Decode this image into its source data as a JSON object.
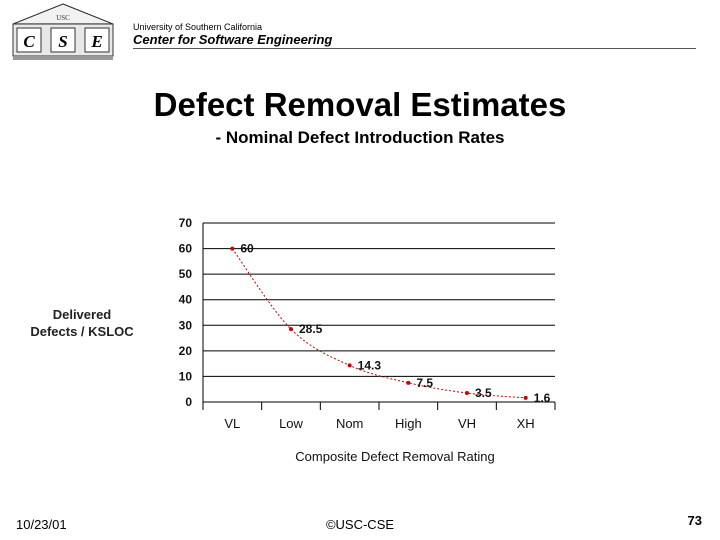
{
  "header": {
    "logo_text": "CSE",
    "logo_letters": [
      "C",
      "S",
      "E"
    ],
    "logo_top": "USC",
    "university": "University of Southern California",
    "department": "Center for Software  Engineering"
  },
  "slide": {
    "title": "Defect Removal Estimates",
    "subtitle": "- Nominal Defect Introduction Rates"
  },
  "chart_data": {
    "type": "line",
    "categories": [
      "VL",
      "Low",
      "Nom",
      "High",
      "VH",
      "XH"
    ],
    "series": [
      {
        "values": [
          60,
          28.5,
          14.3,
          7.5,
          3.5,
          1.6
        ],
        "labels": [
          "60",
          "28.5",
          "14.3",
          "7.5",
          "3.5",
          "1.6"
        ]
      }
    ],
    "ylim": [
      0,
      70
    ],
    "yticks": [
      0,
      10,
      20,
      30,
      40,
      50,
      60,
      70
    ],
    "ylabel": "Delivered Defects / KSLOC",
    "xlabel": "Composite Defect Removal Rating",
    "grid": true,
    "line_color": "#cc0000"
  },
  "footer": {
    "date": "10/23/01",
    "copyright": "©USC-CSE",
    "page": "73"
  }
}
